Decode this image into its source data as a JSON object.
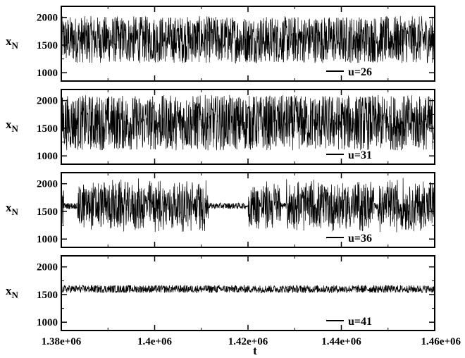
{
  "chart_data": [
    {
      "type": "line",
      "series": [
        {
          "name": "u=26",
          "mean": 1600,
          "envelope": [
            1150,
            2000
          ],
          "intermittent": false
        }
      ],
      "xlabel": "t",
      "ylabel": "x",
      "ylabel_sub": "N",
      "xlim": [
        1380000,
        1460000
      ],
      "ylim": [
        850,
        2200
      ],
      "yticks": [
        1000,
        1500,
        2000
      ],
      "ytick_labels": [
        "1000",
        "1500",
        "2000"
      ],
      "legend_position": "bottom-right",
      "grid": false
    },
    {
      "type": "line",
      "series": [
        {
          "name": "u=31",
          "mean": 1600,
          "envelope": [
            1050,
            2050
          ],
          "intermittent": false
        }
      ],
      "xlabel": "t",
      "ylabel": "x",
      "ylabel_sub": "N",
      "xlim": [
        1380000,
        1460000
      ],
      "ylim": [
        850,
        2200
      ],
      "yticks": [
        1000,
        1500,
        2000
      ],
      "ytick_labels": [
        "1000",
        "1500",
        "2000"
      ],
      "legend_position": "bottom-right",
      "grid": false
    },
    {
      "type": "line",
      "series": [
        {
          "name": "u=36",
          "mean": 1600,
          "envelope": [
            1000,
            2050
          ],
          "intermittent": true,
          "quiet_intervals": [
            [
              1380500,
              1383500
            ],
            [
              1411500,
              1420000
            ],
            [
              1427000,
              1428200
            ],
            [
              1447000,
              1447800
            ]
          ]
        }
      ],
      "xlabel": "t",
      "ylabel": "x",
      "ylabel_sub": "N",
      "xlim": [
        1380000,
        1460000
      ],
      "ylim": [
        850,
        2200
      ],
      "yticks": [
        1000,
        1500,
        2000
      ],
      "ytick_labels": [
        "1000",
        "1500",
        "2000"
      ],
      "legend_position": "bottom-right",
      "grid": false
    },
    {
      "type": "line",
      "series": [
        {
          "name": "u=41",
          "mean": 1600,
          "envelope": [
            1530,
            1670
          ],
          "intermittent": false
        }
      ],
      "xlabel": "t",
      "ylabel": "x",
      "ylabel_sub": "N",
      "xlim": [
        1380000,
        1460000
      ],
      "ylim": [
        850,
        2200
      ],
      "yticks": [
        1000,
        1500,
        2000
      ],
      "ytick_labels": [
        "1000",
        "1500",
        "2000"
      ],
      "xticks": [
        1380000,
        1400000,
        1420000,
        1440000,
        1460000
      ],
      "xtick_labels": [
        "1.38e+06",
        "1.4e+06",
        "1.42e+06",
        "1.44e+06",
        "1.46e+06"
      ],
      "legend_position": "bottom-right",
      "grid": false
    }
  ],
  "colors": {
    "line": "#000000",
    "background": "#ffffff"
  }
}
